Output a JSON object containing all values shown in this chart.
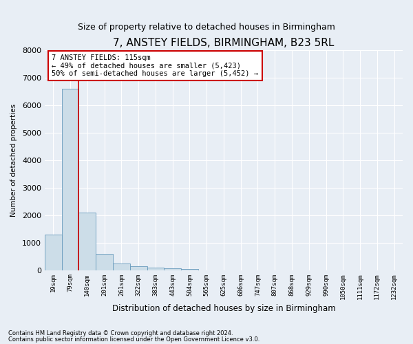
{
  "title": "7, ANSTEY FIELDS, BIRMINGHAM, B23 5RL",
  "subtitle": "Size of property relative to detached houses in Birmingham",
  "xlabel": "Distribution of detached houses by size in Birmingham",
  "ylabel": "Number of detached properties",
  "footnote1": "Contains HM Land Registry data © Crown copyright and database right 2024.",
  "footnote2": "Contains public sector information licensed under the Open Government Licence v3.0.",
  "annotation_line1": "7 ANSTEY FIELDS: 115sqm",
  "annotation_line2": "← 49% of detached houses are smaller (5,423)",
  "annotation_line3": "50% of semi-detached houses are larger (5,452) →",
  "bar_color": "#ccdde8",
  "bar_edge_color": "#6699bb",
  "vline_color": "#cc0000",
  "vline_x": 1.5,
  "categories": [
    "19sqm",
    "79sqm",
    "140sqm",
    "201sqm",
    "261sqm",
    "322sqm",
    "383sqm",
    "443sqm",
    "504sqm",
    "565sqm",
    "625sqm",
    "686sqm",
    "747sqm",
    "807sqm",
    "868sqm",
    "929sqm",
    "990sqm",
    "1050sqm",
    "1111sqm",
    "1172sqm",
    "1232sqm"
  ],
  "values": [
    1300,
    6600,
    2100,
    600,
    250,
    150,
    100,
    60,
    50,
    0,
    0,
    0,
    0,
    0,
    0,
    0,
    0,
    0,
    0,
    0,
    0
  ],
  "ylim": [
    0,
    8000
  ],
  "yticks": [
    0,
    1000,
    2000,
    3000,
    4000,
    5000,
    6000,
    7000,
    8000
  ],
  "background_color": "#e8eef5",
  "plot_bg_color": "#e8eef5",
  "title_fontsize": 11,
  "subtitle_fontsize": 9,
  "annotation_box_facecolor": "white",
  "annotation_box_edgecolor": "#cc0000",
  "footnote_fontsize": 6
}
